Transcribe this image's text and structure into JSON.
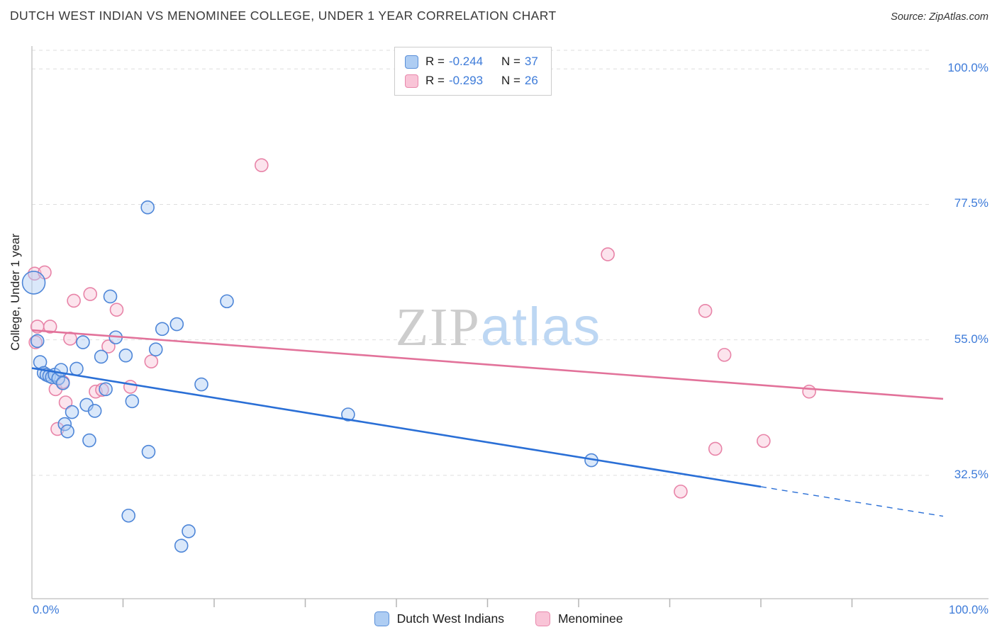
{
  "header": {
    "title": "DUTCH WEST INDIAN VS MENOMINEE COLLEGE, UNDER 1 YEAR CORRELATION CHART",
    "source_prefix": "Source:",
    "source_name": "ZipAtlas.com"
  },
  "watermark": {
    "part1": "ZIP",
    "part2": "atlas"
  },
  "legend_box": {
    "rows": [
      {
        "series": "Dutch West Indians",
        "r_label": "R =",
        "r_value": "-0.244",
        "n_label": "N =",
        "n_value": "37",
        "swatch_fill": "#aecdf3",
        "swatch_stroke": "#5a8fd8"
      },
      {
        "series": "Menominee",
        "r_label": "R =",
        "r_value": "-0.293",
        "n_label": "N =",
        "n_value": "26",
        "swatch_fill": "#f9c4d7",
        "swatch_stroke": "#e888ac"
      }
    ]
  },
  "bottom_legend": {
    "items": [
      {
        "label": "Dutch West Indians",
        "swatch_fill": "#aecdf3",
        "swatch_stroke": "#5a8fd8"
      },
      {
        "label": "Menominee",
        "swatch_fill": "#f9c4d7",
        "swatch_stroke": "#e888ac"
      }
    ]
  },
  "chart_data": {
    "type": "scatter",
    "title": "Dutch West Indian vs Menominee College, Under 1 year",
    "xlabel": "",
    "ylabel": "College, Under 1 year",
    "xlim": [
      0,
      100
    ],
    "ylim": [
      12,
      103.8
    ],
    "grid": true,
    "grid_y": [
      103.1,
      100.0,
      77.5,
      55.0,
      32.5
    ],
    "y_tick_labels": [
      "100.0%",
      "77.5%",
      "55.0%",
      "32.5%"
    ],
    "y_tick_values": [
      100.0,
      77.5,
      55.0,
      32.5
    ],
    "x_tick_labels": {
      "left": "0.0%",
      "right": "100.0%"
    },
    "series": [
      {
        "name": "Dutch West Indians",
        "key": "dutch-west-indians",
        "R": -0.244,
        "N": 37,
        "fill": "#aecdf3",
        "stroke": "#4e86d8",
        "points": [
          [
            0.2,
            64.5,
            16
          ],
          [
            0.6,
            54.8,
            9
          ],
          [
            0.9,
            51.3,
            9
          ],
          [
            1.3,
            49.5,
            9
          ],
          [
            1.6,
            49.2,
            9
          ],
          [
            1.9,
            49.0,
            9
          ],
          [
            2.2,
            48.8,
            9
          ],
          [
            2.5,
            49.2,
            9
          ],
          [
            2.9,
            48.6,
            9
          ],
          [
            3.2,
            50.0,
            9
          ],
          [
            3.4,
            47.8,
            9
          ],
          [
            3.6,
            41.0,
            9
          ],
          [
            3.9,
            39.8,
            9
          ],
          [
            4.4,
            43.0,
            9
          ],
          [
            4.9,
            50.2,
            9
          ],
          [
            5.6,
            54.6,
            9
          ],
          [
            6.0,
            44.2,
            9
          ],
          [
            6.3,
            38.3,
            9
          ],
          [
            6.9,
            43.2,
            9
          ],
          [
            7.6,
            52.2,
            9
          ],
          [
            8.1,
            46.8,
            9
          ],
          [
            8.6,
            62.2,
            9
          ],
          [
            9.2,
            55.4,
            9
          ],
          [
            10.3,
            52.4,
            9
          ],
          [
            10.6,
            25.8,
            9
          ],
          [
            11.0,
            44.8,
            9
          ],
          [
            12.7,
            77.0,
            9
          ],
          [
            12.8,
            36.4,
            9
          ],
          [
            13.6,
            53.4,
            9
          ],
          [
            14.3,
            56.8,
            9
          ],
          [
            15.9,
            57.6,
            9
          ],
          [
            16.4,
            20.8,
            9
          ],
          [
            17.2,
            23.2,
            9
          ],
          [
            18.6,
            47.6,
            9
          ],
          [
            21.4,
            61.4,
            9
          ],
          [
            34.7,
            42.6,
            9
          ],
          [
            61.4,
            35.0,
            9
          ]
        ]
      },
      {
        "name": "Menominee",
        "key": "menominee",
        "R": -0.293,
        "N": 26,
        "fill": "#f9c4d7",
        "stroke": "#e884a8",
        "points": [
          [
            0.3,
            66.0,
            9
          ],
          [
            1.4,
            66.2,
            9
          ],
          [
            0.6,
            57.2,
            9
          ],
          [
            2.0,
            57.2,
            9
          ],
          [
            0.4,
            54.6,
            9
          ],
          [
            2.6,
            46.8,
            9
          ],
          [
            2.8,
            40.2,
            9
          ],
          [
            3.4,
            48.0,
            9
          ],
          [
            3.7,
            44.6,
            9
          ],
          [
            4.2,
            55.2,
            9
          ],
          [
            4.6,
            61.5,
            9
          ],
          [
            6.4,
            62.6,
            9
          ],
          [
            7.0,
            46.4,
            9
          ],
          [
            7.7,
            46.7,
            9
          ],
          [
            8.4,
            53.9,
            9
          ],
          [
            9.3,
            60.0,
            9
          ],
          [
            10.8,
            47.2,
            9
          ],
          [
            13.1,
            51.4,
            9
          ],
          [
            25.2,
            84.0,
            9
          ],
          [
            63.2,
            69.2,
            9
          ],
          [
            71.2,
            29.8,
            9
          ],
          [
            73.9,
            59.8,
            9
          ],
          [
            75.0,
            36.9,
            9
          ],
          [
            76.0,
            52.5,
            9
          ],
          [
            80.3,
            38.2,
            9
          ],
          [
            85.3,
            46.4,
            9
          ]
        ]
      }
    ],
    "trend_lines": [
      {
        "key": "dutch-west-indians",
        "color": "#2a6fd6",
        "x0": 0,
        "y0": 50.3,
        "x1": 80,
        "y1": 30.6,
        "x2": 100,
        "y2": 25.7,
        "dashed_tail": true
      },
      {
        "key": "menominee",
        "color": "#e2729a",
        "x0": 0,
        "y0": 56.6,
        "x1": 100,
        "y1": 45.2,
        "dashed_tail": false
      }
    ],
    "legend_position": "bottom-center"
  }
}
